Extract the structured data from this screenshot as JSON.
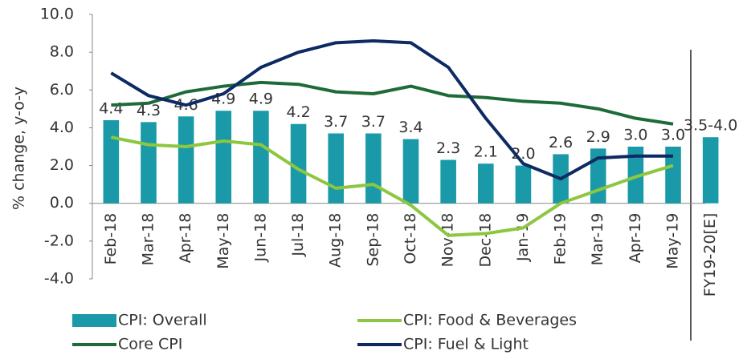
{
  "chart_data": {
    "type": "bar-line",
    "y_label": "% change, y-o-y",
    "categories": [
      "Feb-18",
      "Mar-18",
      "Apr-18",
      "May-18",
      "Jun-18",
      "Jul-18",
      "Aug-18",
      "Sep-18",
      "Oct-18",
      "Nov-18",
      "Dec-18",
      "Jan-19",
      "Feb-19",
      "Mar-19",
      "Apr-19",
      "May-19",
      "FY19-20[E]"
    ],
    "series": [
      {
        "name": "CPI: Overall",
        "kind": "bar",
        "color": "#1a9aa8",
        "values": [
          4.4,
          4.3,
          4.6,
          4.9,
          4.9,
          4.2,
          3.7,
          3.7,
          3.4,
          2.3,
          2.1,
          2.0,
          2.6,
          2.9,
          3.0,
          3.0,
          3.5
        ],
        "value_labels": [
          "4.4",
          "4.3",
          "4.6",
          "4.9",
          "4.9",
          "4.2",
          "3.7",
          "3.7",
          "3.4",
          "2.3",
          "2.1",
          "2.0",
          "2.6",
          "2.9",
          "3.0",
          "3.0",
          "3.5-4.0"
        ]
      },
      {
        "name": "CPI: Food & Beverages",
        "kind": "line",
        "color": "#8dc63f",
        "values": [
          3.5,
          3.1,
          3.0,
          3.3,
          3.1,
          1.8,
          0.8,
          1.0,
          -0.1,
          -1.7,
          -1.6,
          -1.3,
          0.0,
          0.7,
          1.4,
          2.0,
          null
        ]
      },
      {
        "name": "Core CPI",
        "kind": "line",
        "color": "#1d6b38",
        "values": [
          5.2,
          5.3,
          5.9,
          6.2,
          6.4,
          6.3,
          5.9,
          5.8,
          6.2,
          5.7,
          5.6,
          5.4,
          5.3,
          5.0,
          4.5,
          4.2,
          null
        ]
      },
      {
        "name": "CPI: Fuel & Light",
        "kind": "line",
        "color": "#0d2a63",
        "values": [
          6.9,
          5.7,
          5.2,
          5.8,
          7.2,
          8.0,
          8.5,
          8.6,
          8.5,
          7.2,
          4.5,
          2.1,
          1.3,
          2.4,
          2.5,
          2.5,
          null
        ]
      }
    ],
    "ylim": [
      -4,
      10
    ],
    "yticks": [
      {
        "value": -4,
        "label": "-4.0"
      },
      {
        "value": -2,
        "label": "-2.0"
      },
      {
        "value": 0,
        "label": "0.0"
      },
      {
        "value": 2,
        "label": "2.0"
      },
      {
        "value": 4,
        "label": "4.0"
      },
      {
        "value": 6,
        "label": "6.0"
      },
      {
        "value": 8,
        "label": "8.0"
      },
      {
        "value": 10,
        "label": "10.0"
      }
    ]
  }
}
